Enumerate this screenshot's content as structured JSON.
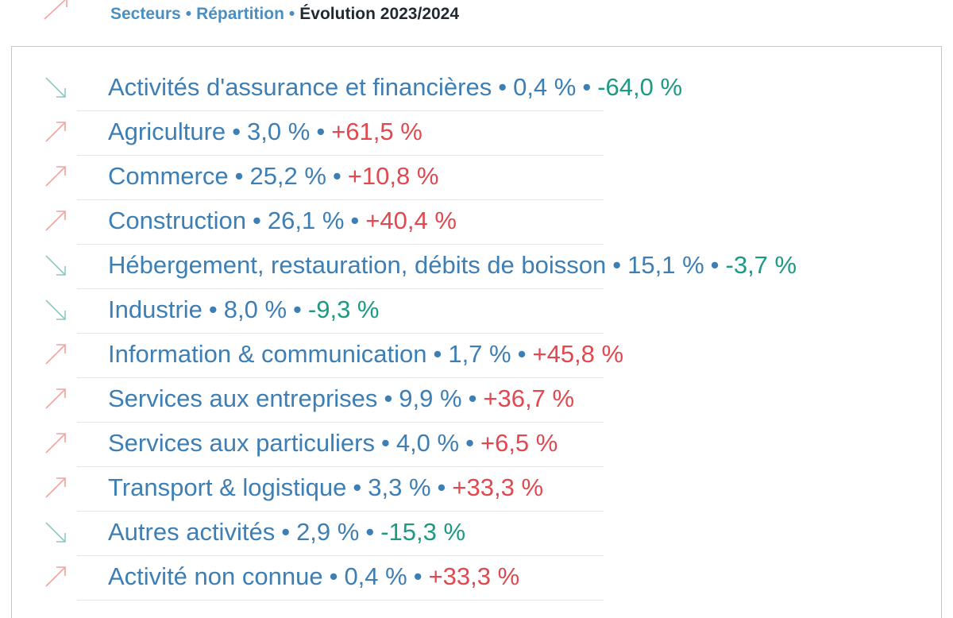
{
  "legend": {
    "item1": "Secteurs",
    "item2": "Répartition",
    "item3": "Évolution 2023/2024"
  },
  "colors": {
    "label": "#3d7fb4",
    "up": "#e1484f",
    "down": "#1c9a84",
    "up_arrow": "#f2a3a0",
    "down_arrow": "#8dc9c4"
  },
  "rows": [
    {
      "sector": "Activités d'assurance et financières",
      "share": "0,4 %",
      "evolution": "-64,0 %",
      "trend": "down"
    },
    {
      "sector": "Agriculture",
      "share": "3,0 %",
      "evolution": "+61,5 %",
      "trend": "up"
    },
    {
      "sector": "Commerce",
      "share": "25,2 %",
      "evolution": "+10,8 %",
      "trend": "up"
    },
    {
      "sector": "Construction",
      "share": "26,1 %",
      "evolution": "+40,4 %",
      "trend": "up"
    },
    {
      "sector": "Hébergement, restauration, débits de boisson",
      "share": "15,1 %",
      "evolution": "-3,7 %",
      "trend": "down"
    },
    {
      "sector": "Industrie",
      "share": "8,0 %",
      "evolution": "-9,3 %",
      "trend": "down"
    },
    {
      "sector": "Information & communication",
      "share": "1,7 %",
      "evolution": "+45,8 %",
      "trend": "up"
    },
    {
      "sector": "Services aux entreprises",
      "share": "9,9 %",
      "evolution": "+36,7 %",
      "trend": "up"
    },
    {
      "sector": "Services aux particuliers",
      "share": "4,0 %",
      "evolution": "+6,5 %",
      "trend": "up"
    },
    {
      "sector": "Transport & logistique",
      "share": "3,3 %",
      "evolution": "+33,3 %",
      "trend": "up"
    },
    {
      "sector": "Autres activités",
      "share": "2,9 %",
      "evolution": "-15,3 %",
      "trend": "down"
    },
    {
      "sector": "Activité non connue",
      "share": "0,4 %",
      "evolution": "+33,3 %",
      "trend": "up"
    }
  ]
}
